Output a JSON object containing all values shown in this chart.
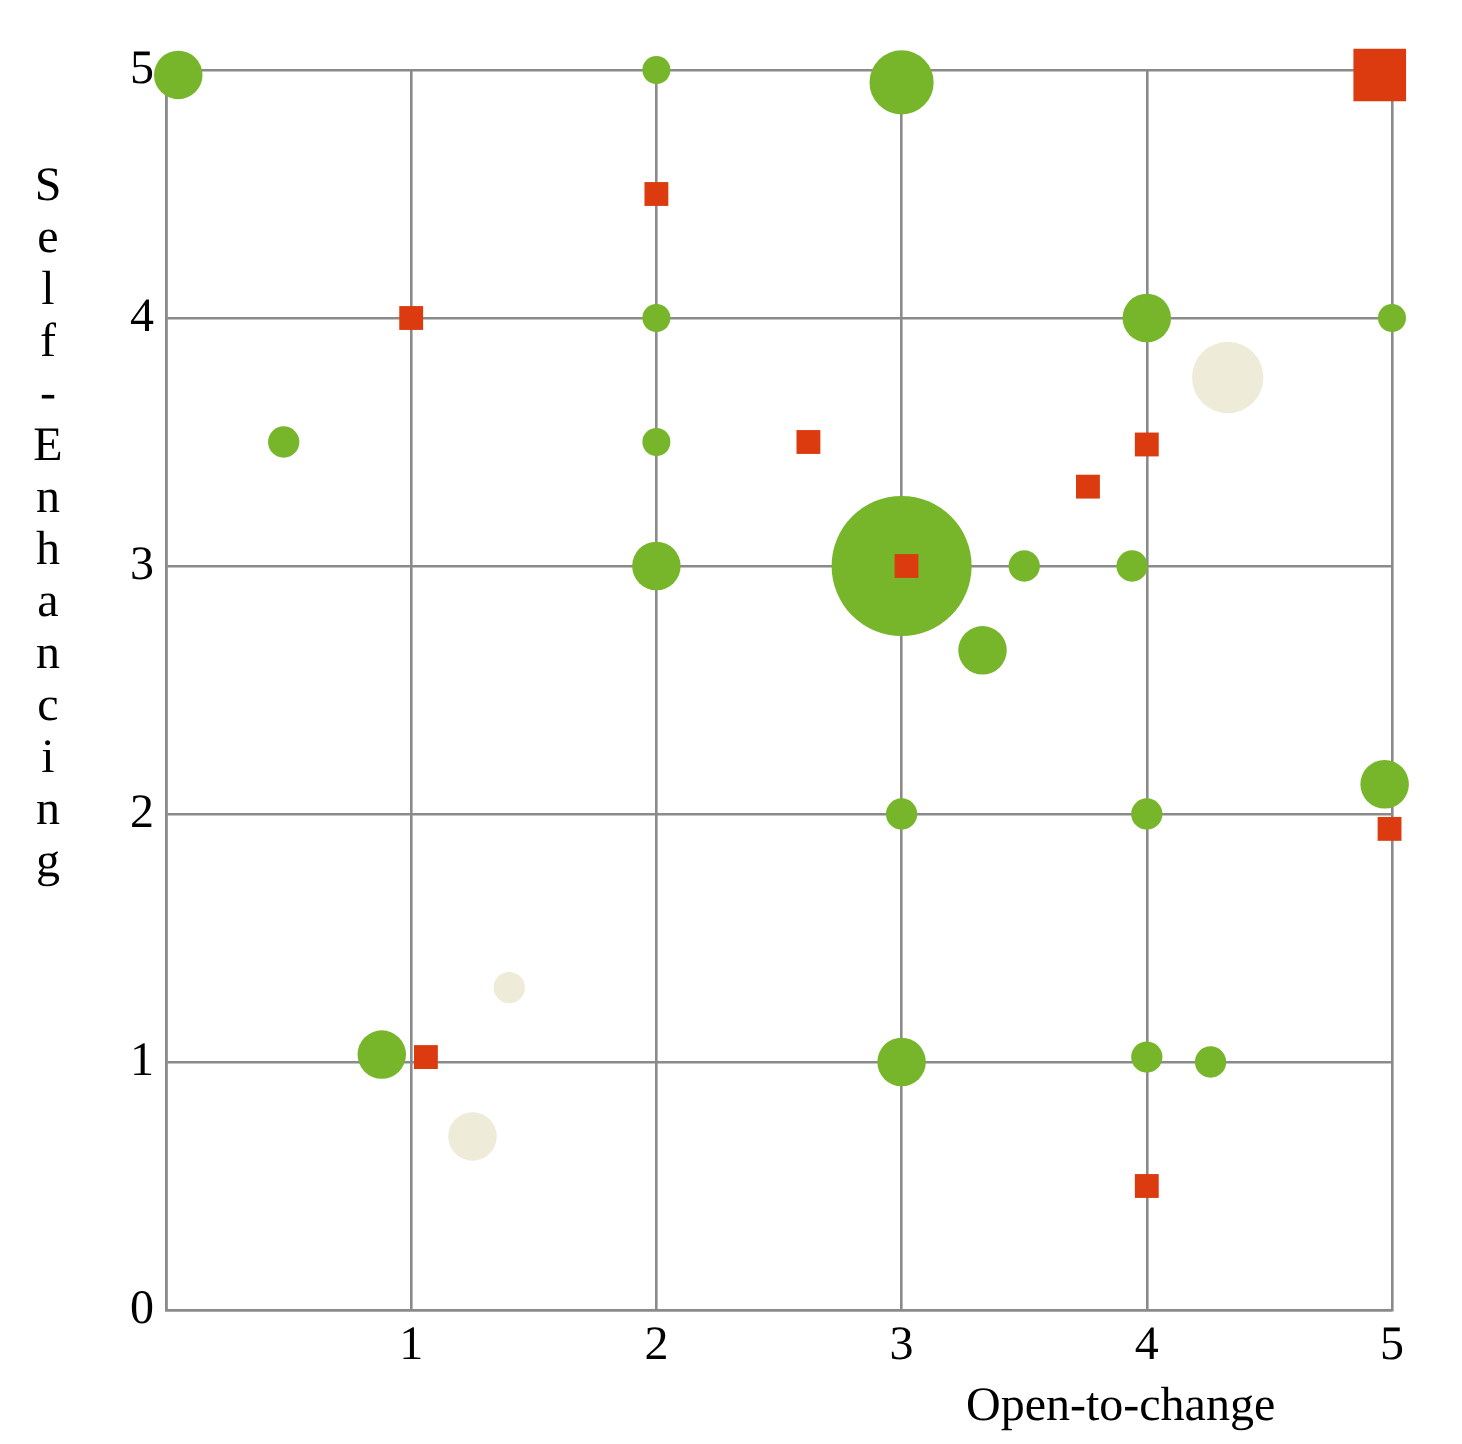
{
  "chart_data": {
    "type": "bubble",
    "xlabel": "Open-to-change",
    "ylabel": "Self-Enhancing",
    "xlim": [
      0,
      5
    ],
    "ylim": [
      0,
      5
    ],
    "xticks": [
      {
        "value": 0,
        "label": null
      },
      1,
      2,
      3,
      4,
      5
    ],
    "yticks": [
      0,
      1,
      2,
      3,
      4,
      5
    ],
    "grid": true,
    "legend": false,
    "series": [
      {
        "color": "#77b52a",
        "marker": "circle",
        "x": [
          0.05,
          2,
          3,
          2,
          4,
          5,
          0.48,
          2,
          2,
          3,
          3.5,
          3.94,
          3.33,
          4.97,
          3,
          4,
          0.88,
          3,
          4,
          4.26
        ],
        "values": [
          4.98,
          5,
          4.95,
          4,
          4,
          4,
          3.5,
          3.5,
          3,
          3,
          3,
          3,
          2.66,
          2.12,
          2,
          2,
          1.03,
          1,
          1.02,
          1
        ],
        "sizes": [
          0.12,
          0.04,
          0.21,
          0.04,
          0.12,
          0.04,
          0.05,
          0.04,
          0.12,
          1,
          0.05,
          0.05,
          0.12,
          0.12,
          0.05,
          0.05,
          0.12,
          0.12,
          0.05,
          0.05
        ]
      },
      {
        "color": "#efebd9",
        "marker": "circle",
        "x": [
          4.33,
          1.4,
          1.25
        ],
        "values": [
          3.76,
          1.3,
          0.7
        ],
        "sizes": [
          0.26,
          0.05,
          0.12
        ]
      },
      {
        "color": "#dc3b10",
        "marker": "square",
        "x": [
          4.95,
          2,
          1,
          2.62,
          3.76,
          4,
          3.02,
          4.99,
          1.06,
          4
        ],
        "values": [
          4.98,
          4.5,
          4,
          3.5,
          3.32,
          3.49,
          3,
          1.94,
          1.02,
          0.5
        ],
        "sizes": [
          0.18,
          0.037,
          0.037,
          0.037,
          0.037,
          0.037,
          0.037,
          0.037,
          0.037,
          0.037
        ]
      }
    ]
  }
}
